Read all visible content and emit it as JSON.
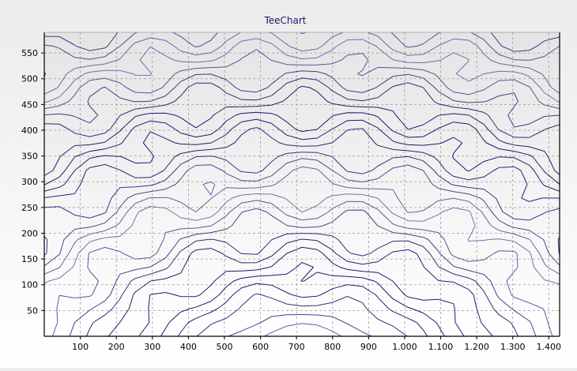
{
  "chart_data": {
    "type": "contour",
    "title": "TeeChart",
    "xlabel": "",
    "ylabel": "",
    "xlim": [
      0,
      1430
    ],
    "ylim": [
      0,
      590
    ],
    "x_ticks": [
      100,
      200,
      300,
      400,
      500,
      600,
      700,
      800,
      900,
      1000,
      1100,
      1200,
      1300,
      1400
    ],
    "x_tick_labels": [
      "100",
      "200",
      "300",
      "400",
      "500",
      "600",
      "700",
      "800",
      "900",
      "1.000",
      "1.100",
      "1.200",
      "1.300",
      "1.400"
    ],
    "y_ticks": [
      50,
      100,
      150,
      200,
      250,
      300,
      350,
      400,
      450,
      500,
      550
    ],
    "y_tick_labels": [
      "50",
      "100",
      "150",
      "200",
      "250",
      "300",
      "350",
      "400",
      "450",
      "500",
      "550"
    ],
    "grid": true,
    "grid_style": "dashed",
    "legend": "none",
    "colors": {
      "contour_dark": "#1a1a6e",
      "contour_light": "#a8acd6",
      "title": "#1a1a6e",
      "axis": "#000000",
      "grid": "#9a9a9a"
    }
  }
}
